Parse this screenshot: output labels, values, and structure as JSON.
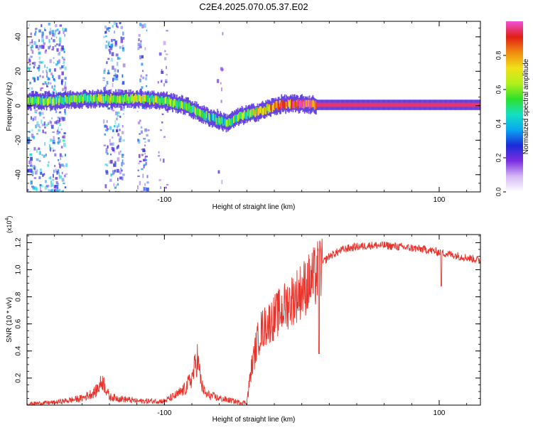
{
  "title": "C2E4.2025.070.05.37.E02",
  "chart_data": [
    {
      "type": "heatmap",
      "xlabel": "Height of straight line (km)",
      "ylabel": "Frequency (Hz)",
      "xlim": [
        -200,
        130
      ],
      "ylim": [
        -50,
        49
      ],
      "x_ticks": [
        -100,
        100
      ],
      "y_ticks": [
        -40,
        -20,
        0,
        20,
        40
      ],
      "colorbar": {
        "label": "Normalized spectral amplitude",
        "range": [
          0,
          1
        ],
        "ticks": [
          0.0,
          0.2,
          0.4,
          0.6,
          0.8
        ]
      },
      "ridge": [
        {
          "x": -200,
          "f": 3,
          "amp": 0.5
        },
        {
          "x": -180,
          "f": 3,
          "amp": 0.55
        },
        {
          "x": -160,
          "f": 4,
          "amp": 0.6
        },
        {
          "x": -140,
          "f": 4,
          "amp": 0.6
        },
        {
          "x": -120,
          "f": 4,
          "amp": 0.6
        },
        {
          "x": -100,
          "f": 3,
          "amp": 0.55
        },
        {
          "x": -85,
          "f": 0,
          "amp": 0.55
        },
        {
          "x": -70,
          "f": -6,
          "amp": 0.5
        },
        {
          "x": -55,
          "f": -10,
          "amp": 0.5
        },
        {
          "x": -45,
          "f": -6,
          "amp": 0.55
        },
        {
          "x": -30,
          "f": -3,
          "amp": 0.7
        },
        {
          "x": -15,
          "f": 1,
          "amp": 0.85
        },
        {
          "x": 0,
          "f": 1,
          "amp": 0.9
        },
        {
          "x": 10,
          "f": 0.5,
          "amp": 0.95
        },
        {
          "x": 130,
          "f": 0.5,
          "amp": 0.95
        }
      ]
    },
    {
      "type": "line",
      "xlabel": "Height of straight line (km)",
      "ylabel": "SNR (10 * v/v)",
      "multiplier_label": "(x10",
      "multiplier_exp": "4",
      "xlim": [
        -200,
        130
      ],
      "ylim": [
        0,
        1.26
      ],
      "x_ticks": [
        -100,
        100
      ],
      "y_ticks": [
        0.2,
        0.4,
        0.6,
        0.8,
        1.0,
        1.2
      ],
      "line_color": "#e8322a",
      "series": [
        {
          "x": [
            -200,
            -180,
            -160,
            -150,
            -145,
            -140,
            -120,
            -100,
            -90,
            -85,
            -80,
            -76,
            -73,
            -70,
            -60,
            -50,
            -45,
            -40,
            -37,
            -33,
            -30,
            -25,
            -20,
            -15,
            -10,
            -5,
            0,
            5,
            10,
            15,
            20,
            30,
            40,
            50,
            60,
            70,
            80,
            90,
            100,
            110,
            120,
            130
          ],
          "y": [
            0.01,
            0.02,
            0.05,
            0.1,
            0.18,
            0.06,
            0.03,
            0.03,
            0.08,
            0.12,
            0.2,
            0.35,
            0.15,
            0.08,
            0.05,
            0.03,
            0.02,
            0.02,
            0.25,
            0.45,
            0.55,
            0.6,
            0.65,
            0.7,
            0.75,
            0.8,
            0.85,
            0.9,
            0.95,
            1.05,
            1.1,
            1.15,
            1.17,
            1.18,
            1.18,
            1.17,
            1.16,
            1.15,
            1.13,
            1.11,
            1.09,
            1.07
          ]
        }
      ]
    }
  ],
  "colors": {
    "colorbar": [
      "#ffffff",
      "#d6b8f5",
      "#7a2ee0",
      "#1a2ad8",
      "#0aa6f0",
      "#14e0c0",
      "#2ee02a",
      "#b4f01c",
      "#f0e018",
      "#f08a10",
      "#e01e14",
      "#f050d8"
    ]
  }
}
